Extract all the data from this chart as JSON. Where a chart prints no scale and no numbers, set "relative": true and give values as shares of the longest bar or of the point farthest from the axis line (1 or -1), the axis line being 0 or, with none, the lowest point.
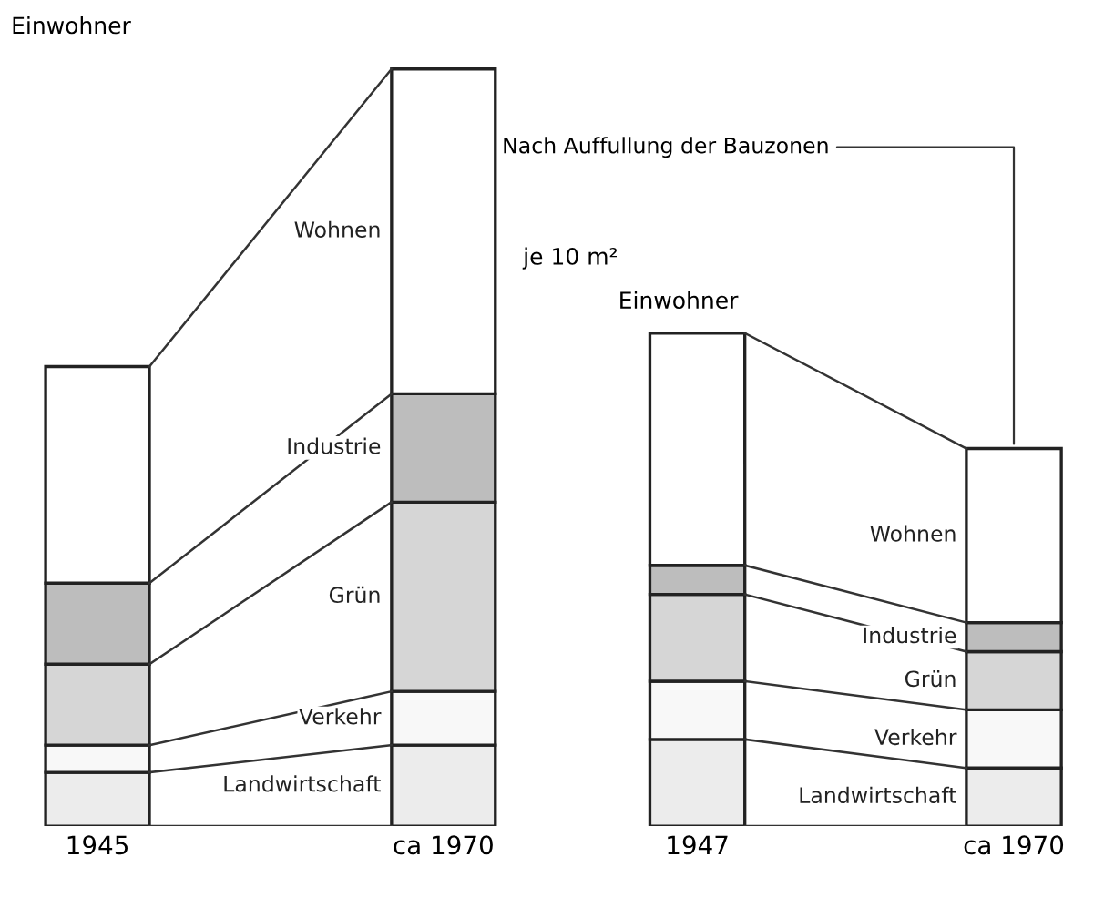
{
  "chart_data": [
    {
      "type": "bar",
      "stacked": true,
      "relative": true,
      "ylabel": "Einwohner",
      "categories": [
        "1945",
        "ca 1970"
      ],
      "series": [
        {
          "name": "Landwirtschaft",
          "color": "#ececec",
          "values": [
            0.071,
            0.107
          ]
        },
        {
          "name": "Verkehr",
          "color": "#f8f8f8",
          "values": [
            0.036,
            0.071
          ]
        },
        {
          "name": "Grün",
          "color": "#d6d6d6",
          "values": [
            0.107,
            0.25
          ]
        },
        {
          "name": "Industrie",
          "color": "#bdbdbd",
          "values": [
            0.107,
            0.143
          ]
        },
        {
          "name": "Wohnen",
          "color": "#ffffff",
          "values": [
            0.286,
            0.429
          ]
        }
      ],
      "annotations": [
        "je 10 m²"
      ]
    },
    {
      "type": "bar",
      "stacked": true,
      "relative": true,
      "ylabel": "Einwohner",
      "categories": [
        "1947",
        "ca 1970"
      ],
      "series": [
        {
          "name": "Landwirtschaft",
          "color": "#ececec",
          "values": [
            0.176,
            0.118
          ]
        },
        {
          "name": "Verkehr",
          "color": "#f8f8f8",
          "values": [
            0.118,
            0.118
          ]
        },
        {
          "name": "Grün",
          "color": "#d6d6d6",
          "values": [
            0.176,
            0.118
          ]
        },
        {
          "name": "Industrie",
          "color": "#bdbdbd",
          "values": [
            0.059,
            0.059
          ]
        },
        {
          "name": "Wohnen",
          "color": "#ffffff",
          "values": [
            0.471,
            0.353
          ]
        }
      ],
      "annotations": [
        {
          "text": "Nach Auffullung der Bauzonen",
          "x": "ca 1970",
          "y": 0.765
        }
      ]
    }
  ]
}
